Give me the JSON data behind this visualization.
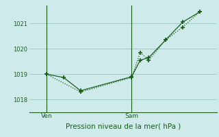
{
  "title": "",
  "xlabel": "Pression niveau de la mer( hPa )",
  "background_color": "#ceeaea",
  "grid_color": "#a0cccc",
  "line_color": "#1a5c1a",
  "figsize": [
    3.2,
    2.0
  ],
  "dpi": 100,
  "ylim": [
    1017.5,
    1021.7
  ],
  "yticks": [
    1018,
    1019,
    1020,
    1021
  ],
  "xtick_labels": [
    "Ven",
    "Sam"
  ],
  "xtick_positions": [
    2,
    12
  ],
  "xlim": [
    0,
    22
  ],
  "series1_x": [
    2,
    4,
    6,
    12,
    13,
    14,
    16,
    18,
    20
  ],
  "series1_y": [
    1019.0,
    1018.87,
    1018.35,
    1018.9,
    1019.55,
    1019.65,
    1020.35,
    1021.05,
    1021.45
  ],
  "series2_x": [
    2,
    6,
    12,
    13,
    14,
    16,
    18,
    20
  ],
  "series2_y": [
    1019.0,
    1018.3,
    1018.87,
    1019.85,
    1019.55,
    1020.35,
    1020.85,
    1021.45
  ],
  "vline_positions": [
    2,
    12
  ]
}
